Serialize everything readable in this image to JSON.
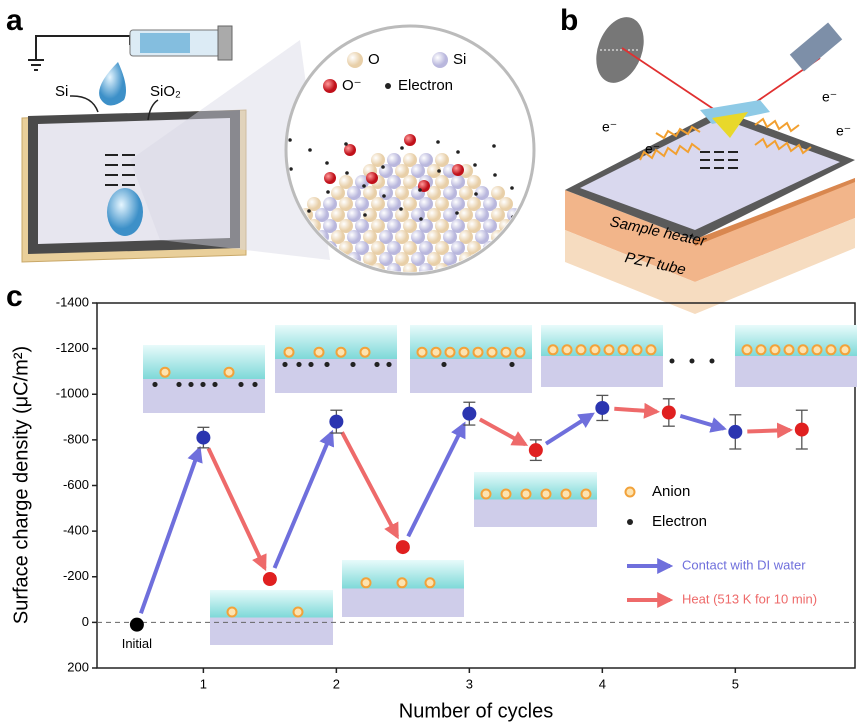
{
  "panel_labels": [
    "a",
    "b",
    "c"
  ],
  "panel_a": {
    "si_label": "Si",
    "sio2_label": "SiO₂",
    "legend": [
      "O",
      "Si",
      "O⁻",
      "Electron"
    ]
  },
  "panel_b": {
    "electron_labels": [
      "e⁻",
      "e⁻",
      "e⁻",
      "e⁻"
    ],
    "layers": [
      "Sample heater",
      "PZT tube"
    ]
  },
  "chart_data": {
    "type": "scatter",
    "y_label": "Surface charge density (μC/m²)",
    "x_label": "Number of cycles",
    "x": [
      0.5,
      1,
      1.5,
      2,
      2.5,
      3,
      3.5,
      4,
      4.5,
      5,
      5.5
    ],
    "values": [
      10,
      -810,
      -190,
      -880,
      -330,
      -915,
      -755,
      -940,
      -920,
      -835,
      -845
    ],
    "errors": [
      null,
      45,
      15,
      50,
      15,
      50,
      45,
      55,
      60,
      75,
      85
    ],
    "point_colors": [
      "#000000",
      "#2b35b0",
      "#e02020",
      "#2b35b0",
      "#e02020",
      "#2b35b0",
      "#e02020",
      "#2b35b0",
      "#e02020",
      "#2b35b0",
      "#e02020"
    ],
    "annotation": "Initial",
    "xlim": [
      0.2,
      5.9
    ],
    "xticks": [
      1,
      2,
      3,
      4,
      5
    ],
    "ylim": [
      200,
      -1400
    ],
    "yticks": [
      -1400,
      -1200,
      -1000,
      -800,
      -600,
      -400,
      -200,
      0,
      200
    ],
    "zero_line": true,
    "legend_markers": [
      {
        "name": "Anion",
        "color": "#f2a23a"
      },
      {
        "name": "Electron",
        "color": "#222222"
      }
    ],
    "legend_arrows": [
      {
        "name": "Contact with DI water",
        "color": "#6f6fdc"
      },
      {
        "name": "Heat (513 K for 10 min)",
        "color": "#ee6a6a"
      }
    ]
  }
}
